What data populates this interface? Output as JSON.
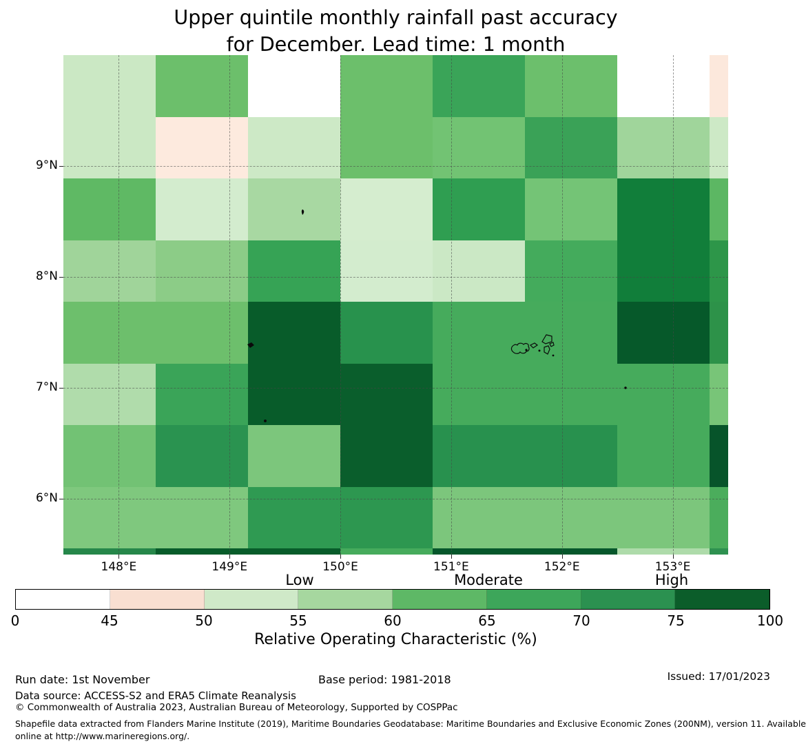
{
  "title": {
    "line1": "Upper quintile monthly rainfall past accuracy",
    "line2": "for December. Lead time: 1 month"
  },
  "axes": {
    "x_tick_labels": [
      "148°E",
      "149°E",
      "150°E",
      "151°E",
      "152°E",
      "153°E"
    ],
    "x_tick_lons": [
      148,
      149,
      150,
      151,
      152,
      153
    ],
    "y_tick_labels": [
      "9°N",
      "8°N",
      "7°N",
      "6°N"
    ],
    "y_tick_lats": [
      9,
      8,
      7,
      6
    ]
  },
  "chart_data": {
    "type": "heatmap",
    "title": "Upper quintile monthly rainfall past accuracy for December. Lead time: 1 month",
    "xlabel": "",
    "ylabel": "",
    "lon_range": [
      147.5,
      153.5
    ],
    "lat_range": [
      5.5,
      10.0
    ],
    "grid_on": true,
    "lon_cell_edges": [
      147.5,
      148.333,
      149.167,
      150.0,
      150.833,
      151.667,
      152.5,
      153.333,
      153.5
    ],
    "lat_cell_edges": [
      10.0,
      9.444,
      8.889,
      8.333,
      7.778,
      7.222,
      6.667,
      6.111,
      5.556,
      5.5
    ],
    "cell_colors": [
      [
        "#cbe8c4",
        "#6cbf6b",
        "#ffffff",
        "#6cbf6b",
        "#3aa458",
        "#6cbf6c",
        "#ffffff",
        "#fce8dc"
      ],
      [
        "#cbe8c4",
        "#fdeade",
        "#cde9c6",
        "#6cbf6b",
        "#72c373",
        "#3aa257",
        "#a0d59b",
        "#cde9c6"
      ],
      [
        "#5fb964",
        "#d3ecce",
        "#a8d8a2",
        "#d5edcf",
        "#2f9e51",
        "#74c476",
        "#117e3a",
        "#5cb763"
      ],
      [
        "#a0d49a",
        "#8ccc87",
        "#36a355",
        "#d3ecce",
        "#cbe8c5",
        "#44ab5c",
        "#117e3a",
        "#2d9649"
      ],
      [
        "#6dbf6c",
        "#6dbf6c",
        "#085c2a",
        "#28924d",
        "#46ab5c",
        "#46ab5c",
        "#06592a",
        "#2d9249"
      ],
      [
        "#b0dcab",
        "#3aa458",
        "#085c2a",
        "#0a5e2c",
        "#46ab5c",
        "#46ab5c",
        "#46ab5c",
        "#78c578"
      ],
      [
        "#72c274",
        "#2a9350",
        "#7cc67c",
        "#0a5e2c",
        "#28914e",
        "#28914e",
        "#46ab5c",
        "#07542a"
      ],
      [
        "#7fc87e",
        "#7fc87e",
        "#2f9a52",
        "#2d9750",
        "#7cc67c",
        "#7cc67c",
        "#7cc67c",
        "#4bad5c"
      ],
      [
        "#26874a",
        "#085c2a",
        "#085c2a",
        "#46ab5c",
        "#06572b",
        "#06572b",
        "#aedbaa",
        "#2e9150"
      ]
    ],
    "values_percent_approx": [
      [
        54,
        64,
        40,
        64,
        69,
        64,
        40,
        47
      ],
      [
        54,
        47,
        54,
        64,
        63,
        69,
        57,
        54
      ],
      [
        65,
        52,
        57,
        52,
        72,
        63,
        78,
        65
      ],
      [
        57,
        60,
        69,
        52,
        54,
        67,
        78,
        72
      ],
      [
        64,
        64,
        90,
        72,
        67,
        67,
        90,
        72
      ],
      [
        56,
        69,
        90,
        90,
        67,
        67,
        67,
        62
      ],
      [
        63,
        72,
        62,
        90,
        72,
        72,
        67,
        90
      ],
      [
        62,
        62,
        72,
        72,
        62,
        62,
        62,
        67
      ],
      [
        72,
        90,
        90,
        67,
        90,
        90,
        56,
        72
      ]
    ]
  },
  "colorbar": {
    "tick_labels": [
      "0",
      "45",
      "50",
      "55",
      "60",
      "65",
      "70",
      "75",
      "100"
    ],
    "segment_colors": [
      "#ffffff",
      "#f9dfd1",
      "#cfe9c8",
      "#a6d79f",
      "#5eb866",
      "#3da65a",
      "#2b9150",
      "#0b5d2a"
    ],
    "category_labels": [
      "Low",
      "Moderate",
      "High"
    ],
    "axis_label": "Relative Operating Characteristic (%)"
  },
  "footer": {
    "run_date": "Run date: 1st November",
    "base_period": "Base period: 1981-2018",
    "issued": "Issued: 17/01/2023",
    "data_source": "Data source: ACCESS-S2 and ERA5 Climate Reanalysis",
    "copyright": "© Commonwealth of Australia 2023, Australian Bureau of Meteorology, Supported by COSPPac",
    "shapefile_line1": "Shapefile data extracted from Flanders Marine Institute (2019), Maritime Boundaries Geodatabase: Maritime Boundaries and Exclusive Economic Zones (200NM), version 11. Available",
    "shapefile_line2": "online at http://www.marineregions.org/."
  }
}
